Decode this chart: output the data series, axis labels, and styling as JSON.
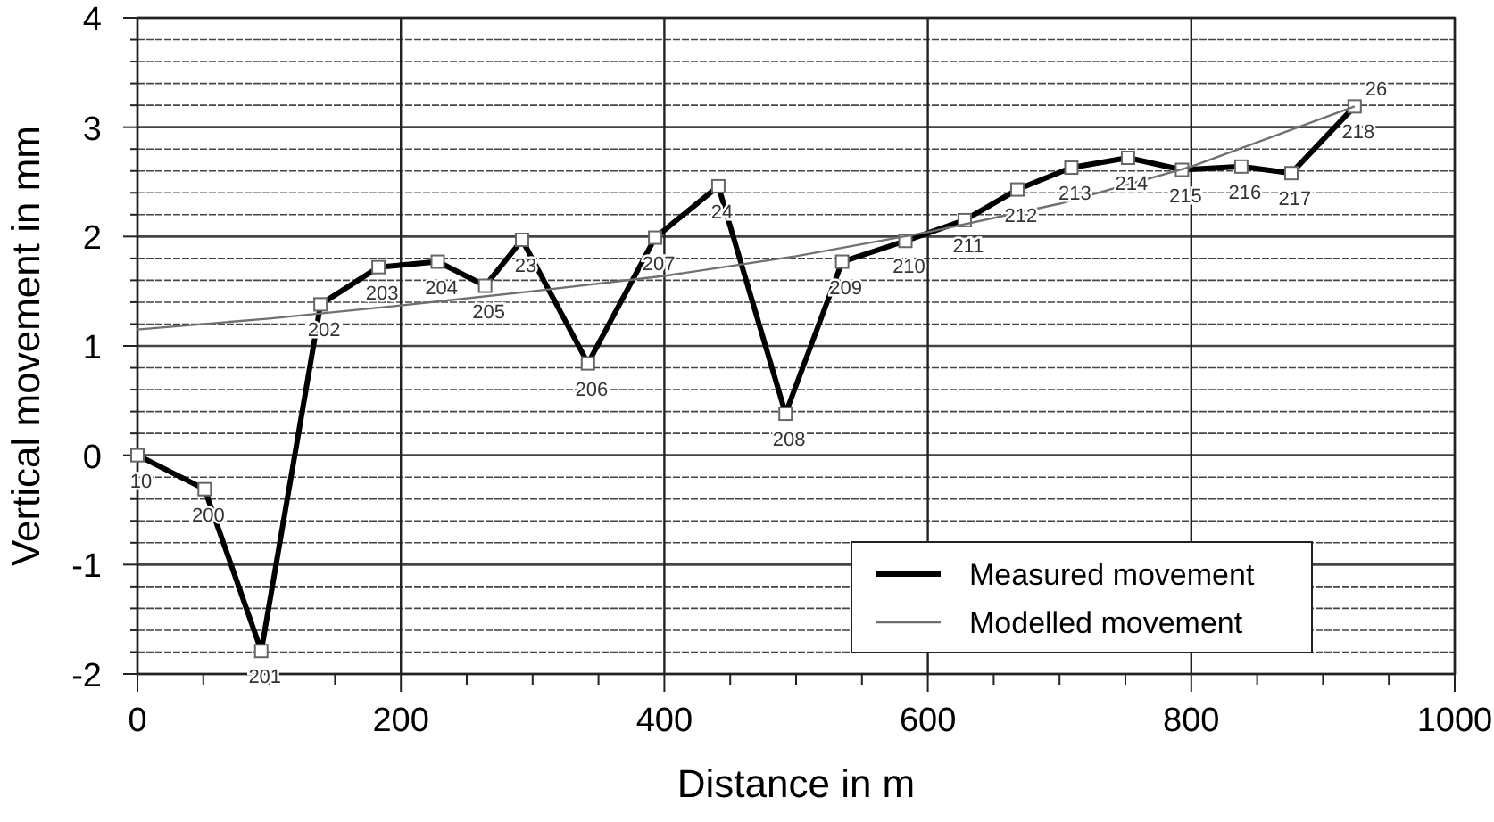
{
  "chart_data": {
    "type": "line",
    "xlabel": "Distance in m",
    "ylabel": "Vertical movement in mm",
    "xlim": [
      0,
      1000
    ],
    "xticks": [
      0,
      {
        "value": 50,
        "label": null
      },
      200,
      {
        "value": 100,
        "label": null
      },
      {
        "value": 150,
        "label": null
      },
      {
        "value": 250,
        "label": null
      },
      {
        "value": 300,
        "label": null
      },
      {
        "value": 350,
        "label": null
      },
      400,
      {
        "value": 450,
        "label": null
      },
      {
        "value": 500,
        "label": null
      },
      {
        "value": 550,
        "label": null
      },
      600,
      {
        "value": 650,
        "label": null
      },
      {
        "value": 700,
        "label": null
      },
      {
        "value": 750,
        "label": null
      },
      800,
      {
        "value": 850,
        "label": null
      },
      {
        "value": 900,
        "label": null
      },
      {
        "value": 950,
        "label": null
      },
      1000
    ],
    "ylim": [
      -2,
      4
    ],
    "yticks": [
      -2,
      {
        "value": -1.8,
        "label": null
      },
      {
        "value": -1.6,
        "label": null
      },
      {
        "value": -1.4,
        "label": null
      },
      {
        "value": -1.2,
        "label": null
      },
      -1,
      {
        "value": -0.8,
        "label": null
      },
      {
        "value": -0.6,
        "label": null
      },
      {
        "value": -0.4,
        "label": null
      },
      {
        "value": -0.2,
        "label": null
      },
      0,
      {
        "value": 0.2,
        "label": null
      },
      {
        "value": 0.4,
        "label": null
      },
      {
        "value": 0.6,
        "label": null
      },
      {
        "value": 0.8,
        "label": null
      },
      1,
      {
        "value": 1.2,
        "label": null
      },
      {
        "value": 1.4,
        "label": null
      },
      {
        "value": 1.6,
        "label": null
      },
      {
        "value": 1.8,
        "label": null
      },
      2,
      {
        "value": 2.2,
        "label": null
      },
      {
        "value": 2.4,
        "label": null
      },
      {
        "value": 2.6,
        "label": null
      },
      {
        "value": 2.8,
        "label": null
      },
      3,
      {
        "value": 3.2,
        "label": null
      },
      {
        "value": 3.4,
        "label": null
      },
      {
        "value": 3.6,
        "label": null
      },
      {
        "value": 3.8,
        "label": null
      },
      4
    ],
    "grid": true,
    "legend": "bottom right",
    "series": [
      {
        "name": "Measured movement",
        "color": "#000000",
        "marker": "square",
        "x": [
          0,
          51,
          94,
          139,
          183,
          228,
          264,
          292,
          342,
          393,
          441,
          492,
          535,
          583,
          628,
          668,
          709,
          752,
          793,
          838,
          876,
          924
        ],
        "values": [
          0,
          -0.31,
          -1.79,
          1.38,
          1.72,
          1.77,
          1.55,
          1.97,
          0.84,
          1.99,
          2.46,
          0.38,
          1.77,
          1.96,
          2.15,
          2.43,
          2.63,
          2.72,
          2.61,
          2.64,
          2.58,
          3.19
        ]
      },
      {
        "name": "Modelled movement",
        "color": "#707070",
        "marker": "none",
        "x": [
          0,
          100,
          200,
          300,
          400,
          500,
          600,
          700,
          800,
          924
        ],
        "values": [
          1.15,
          1.25,
          1.37,
          1.5,
          1.64,
          1.82,
          2.04,
          2.3,
          2.64,
          3.19
        ]
      }
    ],
    "annotations": [
      {
        "text": "10",
        "x": 0,
        "y": 0
      },
      {
        "text": "200",
        "x": 51,
        "y": -0.31
      },
      {
        "text": "201",
        "x": 94,
        "y": -1.79
      },
      {
        "text": "202",
        "x": 139,
        "y": 1.38
      },
      {
        "text": "203",
        "x": 183,
        "y": 1.72
      },
      {
        "text": "204",
        "x": 228,
        "y": 1.77
      },
      {
        "text": "205",
        "x": 264,
        "y": 1.55
      },
      {
        "text": "23",
        "x": 292,
        "y": 1.97
      },
      {
        "text": "206",
        "x": 342,
        "y": 0.84
      },
      {
        "text": "207",
        "x": 393,
        "y": 1.99
      },
      {
        "text": "24",
        "x": 441,
        "y": 2.46
      },
      {
        "text": "208",
        "x": 492,
        "y": 0.38
      },
      {
        "text": "209",
        "x": 535,
        "y": 1.77
      },
      {
        "text": "210",
        "x": 583,
        "y": 1.96
      },
      {
        "text": "211",
        "x": 628,
        "y": 2.15
      },
      {
        "text": "212",
        "x": 668,
        "y": 2.43
      },
      {
        "text": "213",
        "x": 709,
        "y": 2.63
      },
      {
        "text": "214",
        "x": 752,
        "y": 2.72
      },
      {
        "text": "215",
        "x": 793,
        "y": 2.61
      },
      {
        "text": "216",
        "x": 838,
        "y": 2.64
      },
      {
        "text": "217",
        "x": 876,
        "y": 2.58
      },
      {
        "text": "218",
        "x": 924,
        "y": 3.19
      },
      {
        "text": "26",
        "x": 924,
        "y": 3.19
      }
    ]
  }
}
